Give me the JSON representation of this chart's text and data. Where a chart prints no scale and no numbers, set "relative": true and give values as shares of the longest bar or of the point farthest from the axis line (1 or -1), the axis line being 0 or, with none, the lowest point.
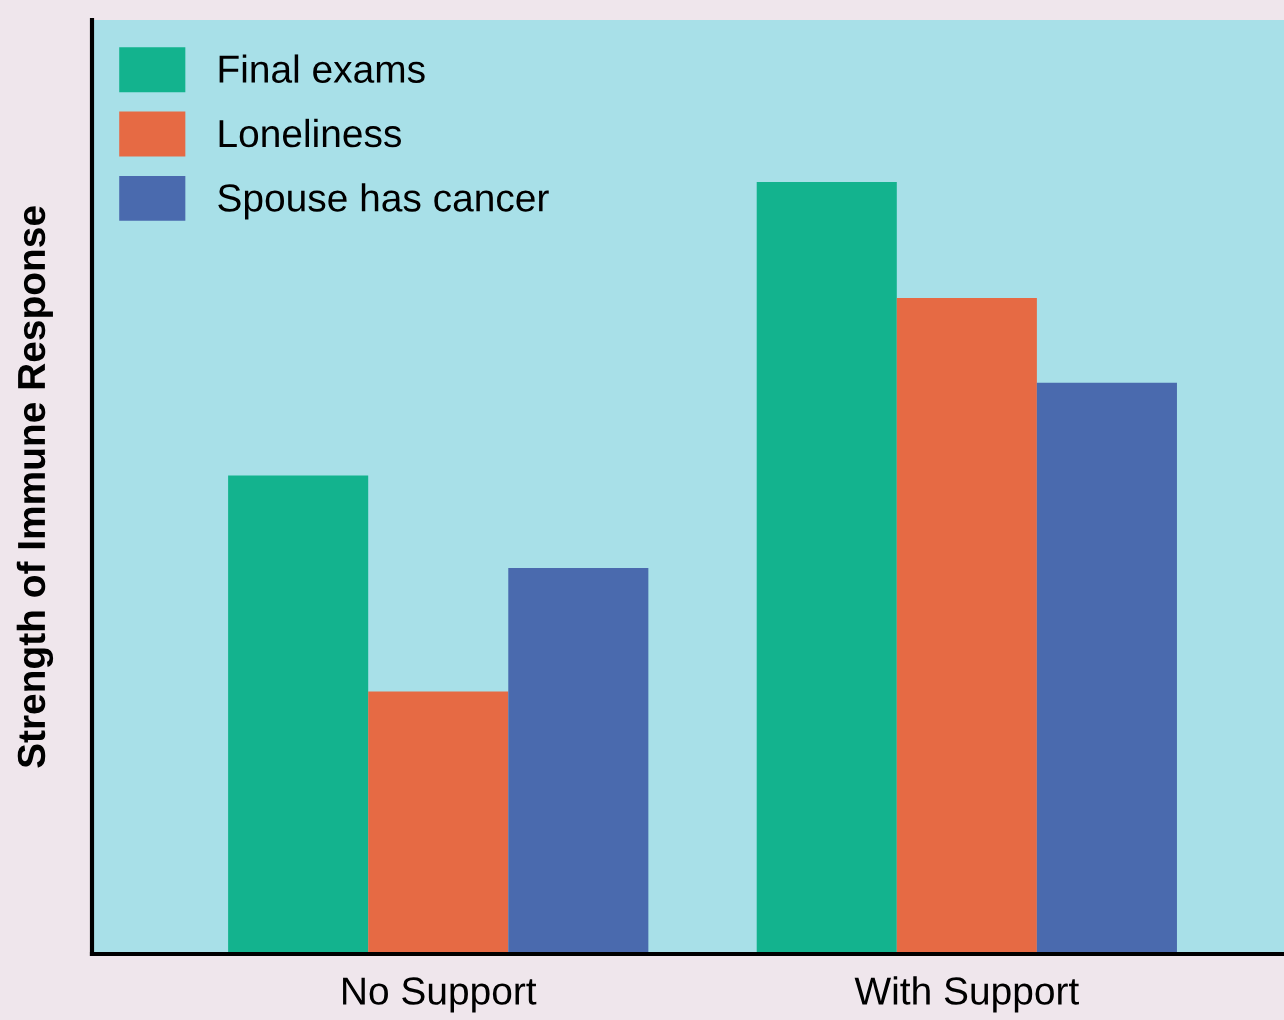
{
  "chart_data": {
    "type": "bar",
    "ylabel": "Strength of Immune Response",
    "relative": true,
    "categories": [
      "No Support",
      "With Support"
    ],
    "series": [
      {
        "name": "Final exams",
        "color": "#13b38e",
        "values": [
          0.62,
          1
        ]
      },
      {
        "name": "Loneliness",
        "color": "#e66a44",
        "values": [
          0.34,
          0.85
        ]
      },
      {
        "name": "Spouse has cancer",
        "color": "#4a6aae",
        "values": [
          0.5,
          0.74
        ]
      }
    ],
    "legend": "top left",
    "grid": false
  }
}
